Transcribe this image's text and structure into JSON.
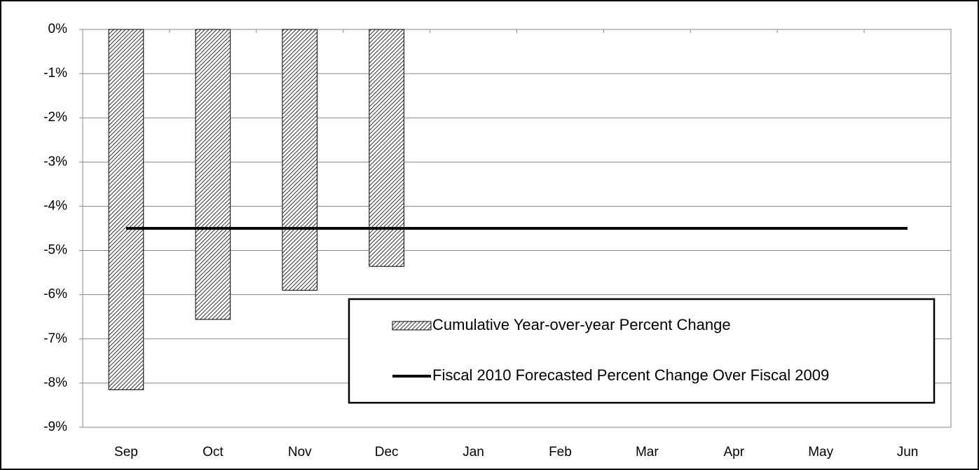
{
  "chart_data": {
    "type": "bar",
    "categories": [
      "Sep",
      "Oct",
      "Nov",
      "Dec",
      "Jan",
      "Feb",
      "Mar",
      "Apr",
      "May",
      "Jun"
    ],
    "series": [
      {
        "name": "Cumulative Year-over-year Percent Change",
        "type": "bar",
        "color": "#000000",
        "values": [
          -8.15,
          -6.56,
          -5.9,
          -5.36,
          null,
          null,
          null,
          null,
          null,
          null
        ]
      },
      {
        "name": "Fiscal 2010 Forecasted Percent Change Over Fiscal 2009",
        "type": "line",
        "color": "#000000",
        "values": [
          -4.5,
          -4.5,
          -4.5,
          -4.5,
          -4.5,
          -4.5,
          -4.5,
          -4.5,
          -4.5,
          -4.5
        ]
      }
    ],
    "ylim": [
      -9,
      0
    ],
    "yticks": [
      {
        "value": 0,
        "label": "0%"
      },
      {
        "value": -1,
        "label": "-1%"
      },
      {
        "value": -2,
        "label": "-2%"
      },
      {
        "value": -3,
        "label": "-3%"
      },
      {
        "value": -4,
        "label": "-4%"
      },
      {
        "value": -5,
        "label": "-5%"
      },
      {
        "value": -6,
        "label": "-6%"
      },
      {
        "value": -7,
        "label": "-7%"
      },
      {
        "value": -8,
        "label": "-8%"
      },
      {
        "value": -9,
        "label": "-9%"
      }
    ],
    "grid": true,
    "legend_position": "lower right"
  }
}
